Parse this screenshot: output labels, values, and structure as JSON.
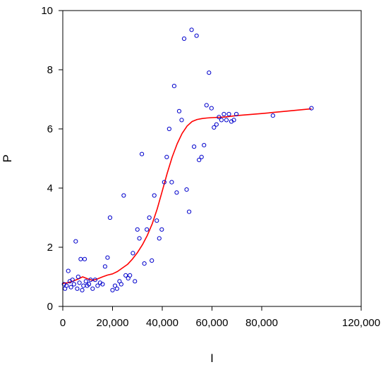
{
  "chart_data": {
    "type": "scatter",
    "title": "",
    "xlabel": "I",
    "ylabel": "P",
    "xlim": [
      0,
      120000
    ],
    "ylim": [
      0,
      10
    ],
    "x_ticks": [
      0,
      20000,
      40000,
      60000,
      80000,
      120000
    ],
    "x_tick_labels": [
      "0",
      "20,000",
      "40,000",
      "60,000",
      "80,000",
      "120,000"
    ],
    "y_ticks": [
      0,
      2,
      4,
      6,
      8,
      10
    ],
    "y_tick_labels": [
      "0",
      "2",
      "4",
      "6",
      "8",
      "10"
    ],
    "grid": false,
    "legend": "none",
    "colors": {
      "points": "#0000cc",
      "fit_line": "#ff0000",
      "frame": "#000000"
    },
    "series": [
      {
        "kind": "points",
        "x": [
          500,
          900,
          1500,
          2200,
          2800,
          3300,
          3900,
          4500,
          5200,
          5800,
          6200,
          6700,
          7200,
          7800,
          8300,
          8800,
          9300,
          9800,
          10500,
          11200,
          12000,
          13000,
          14000,
          15000,
          16000,
          17000,
          18000,
          19000,
          20000,
          21000,
          21800,
          22800,
          23500,
          24500,
          25300,
          26300,
          27000,
          28200,
          29000,
          30000,
          30800,
          31800,
          32800,
          33800,
          34800,
          35800,
          36800,
          37800,
          38800,
          39800,
          40800,
          41800,
          42800,
          43800,
          44800,
          45800,
          46800,
          47800,
          48800,
          49800,
          50800,
          51800,
          52800,
          53800,
          54800,
          55800,
          56800,
          57800,
          58800,
          59800,
          60800,
          61800,
          62800,
          63800,
          64800,
          65800,
          66800,
          67800,
          68800,
          69800,
          84500,
          100000
        ],
        "y": [
          0.75,
          0.6,
          0.7,
          1.2,
          0.85,
          0.65,
          0.9,
          0.75,
          2.2,
          0.6,
          1.0,
          0.8,
          1.6,
          0.55,
          0.7,
          1.6,
          0.85,
          0.7,
          0.75,
          0.9,
          0.6,
          0.9,
          0.7,
          0.8,
          0.75,
          1.35,
          1.65,
          3.0,
          0.55,
          0.7,
          0.6,
          0.85,
          0.75,
          3.75,
          1.05,
          0.95,
          1.05,
          1.8,
          0.85,
          2.6,
          2.3,
          5.15,
          1.45,
          2.6,
          3.0,
          1.55,
          3.75,
          2.9,
          2.3,
          2.6,
          4.2,
          5.05,
          6.0,
          4.2,
          7.45,
          3.85,
          6.6,
          6.3,
          9.05,
          3.95,
          3.2,
          9.35,
          5.4,
          9.15,
          4.95,
          5.05,
          5.45,
          6.8,
          7.9,
          6.7,
          6.05,
          6.15,
          6.4,
          6.3,
          6.5,
          6.3,
          6.5,
          6.25,
          6.3,
          6.5,
          6.45,
          6.7
        ]
      },
      {
        "kind": "line",
        "x": [
          0,
          2000,
          4000,
          6000,
          8000,
          10000,
          12000,
          14000,
          16000,
          18000,
          20000,
          22000,
          24000,
          26000,
          28000,
          30000,
          32000,
          34000,
          36000,
          38000,
          40000,
          42000,
          44000,
          46000,
          48000,
          50000,
          52000,
          54000,
          56000,
          58000,
          60000,
          65000,
          70000,
          80000,
          90000,
          100000
        ],
        "y": [
          0.78,
          0.8,
          0.85,
          0.92,
          1.0,
          0.93,
          0.88,
          0.93,
          1.0,
          1.06,
          1.1,
          1.18,
          1.3,
          1.42,
          1.6,
          1.82,
          2.08,
          2.4,
          2.8,
          3.3,
          3.9,
          4.5,
          5.05,
          5.5,
          5.85,
          6.1,
          6.25,
          6.32,
          6.35,
          6.37,
          6.38,
          6.4,
          6.45,
          6.52,
          6.6,
          6.68
        ]
      }
    ]
  }
}
